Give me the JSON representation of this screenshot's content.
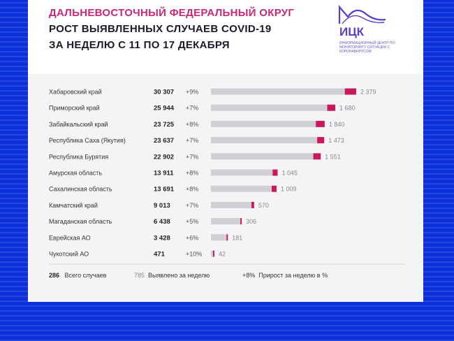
{
  "header": {
    "line1": "ДАЛЬНЕВОСТОЧНЫЙ ФЕДЕРАЛЬНЫЙ ОКРУГ",
    "line2": "РОСТ ВЫЯВЛЕННЫХ СЛУЧАЕВ COVID-19",
    "line3": "ЗА НЕДЕЛЮ С 11 ПО 17 ДЕКАБРЯ"
  },
  "logo": {
    "name": "ИЦК",
    "description": "ИНФОРМАЦИОННЫЙ ЦЕНТР ПО МОНИТОРИНГУ СИТУАЦИИ С КОРОНАВИРУСОМ",
    "color": "#5a3ec8"
  },
  "colors": {
    "bar_total": "#cfcfd4",
    "bar_week": "#c8185e",
    "title_accent": "#c8287a",
    "background": "#0b2fd9"
  },
  "chart_data": {
    "type": "bar",
    "orientation": "horizontal",
    "stacked": true,
    "categories": [
      "Хабаровский край",
      "Приморский край",
      "Забайкальский край",
      "Республика Саха (Якутия)",
      "Республика Бурятия",
      "Амурская область",
      "Сахалинская область",
      "Камчатский край",
      "Магаданская область",
      "Еврейская АО",
      "Чукотский АО"
    ],
    "total_labels": [
      "30 307",
      "25 944",
      "23 725",
      "23 637",
      "22 902",
      "13 911",
      "13 691",
      "9 013",
      "6 438",
      "3 428",
      "471"
    ],
    "growth_labels": [
      "+9%",
      "+7%",
      "+8%",
      "+7%",
      "+7%",
      "+8%",
      "+8%",
      "+7%",
      "+5%",
      "+6%",
      "+10%"
    ],
    "weekly_labels": [
      "2 379",
      "1 680",
      "1 840",
      "1 473",
      "1 551",
      "1 045",
      "1 009",
      "570",
      "306",
      "181",
      "42"
    ],
    "series": [
      {
        "values": [
          27928,
          24264,
          21885,
          22164,
          21351,
          12866,
          12682,
          8443,
          6132,
          3247,
          429
        ]
      },
      {
        "values": [
          2379,
          1680,
          1840,
          1473,
          1551,
          1045,
          1009,
          570,
          306,
          181,
          42
        ]
      }
    ],
    "xlim": [
      0,
      30307
    ],
    "grid": false,
    "legend": "bottom"
  },
  "footer": {
    "total_sample": "286",
    "total_text": "Всего случаев",
    "weekly_sample": "785",
    "weekly_text": "Выявлено за неделю",
    "growth_sample": "+8%",
    "growth_text": "Прирост за неделю в %"
  }
}
